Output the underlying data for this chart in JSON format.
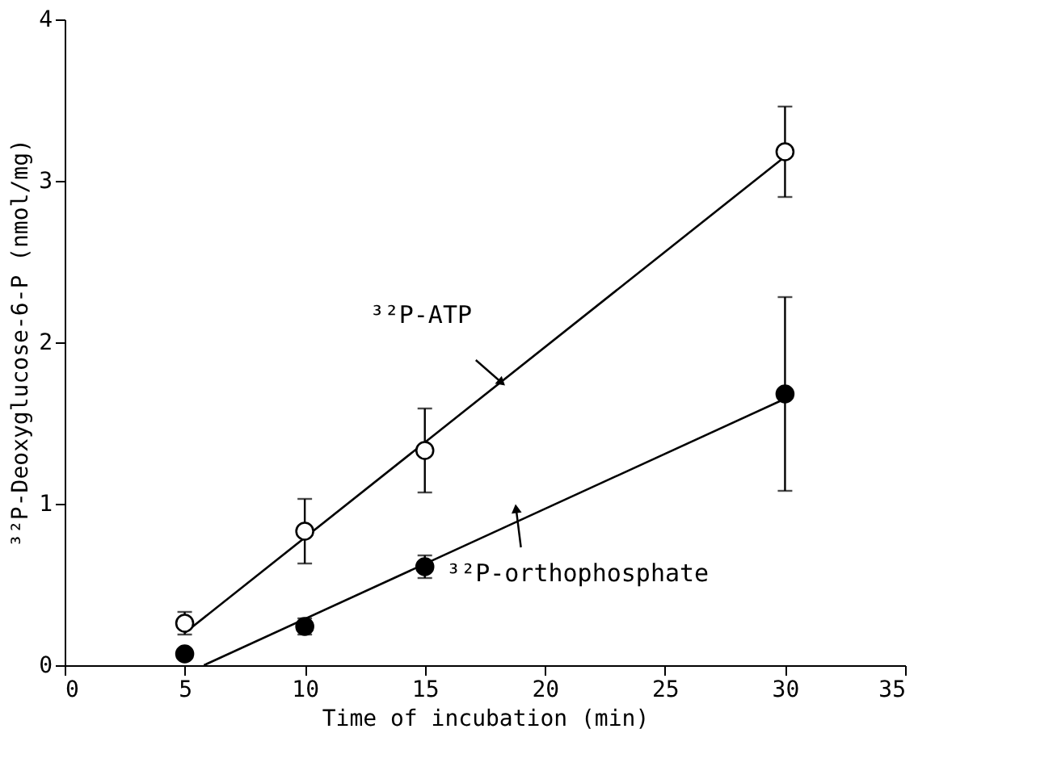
{
  "chart_data": {
    "type": "scatter",
    "xlabel": "Time of incubation (min)",
    "ylabel": "³²P-Deoxyglucose-6-P (nmol/mg)",
    "xlim": [
      0,
      35
    ],
    "xticks": [
      0,
      5,
      10,
      15,
      20,
      25,
      30,
      35
    ],
    "ylim": [
      0,
      4
    ],
    "yticks": [
      {
        "value": 0,
        "label": "0"
      },
      {
        "value": 1,
        "label": "1"
      },
      {
        "value": 2,
        "label": "2"
      },
      {
        "value": 3,
        "label": "3"
      },
      {
        "value": 4,
        "label": "4"
      }
    ],
    "grid": false,
    "marker": "circle",
    "series": [
      {
        "color": "#ffffff",
        "x": [
          5,
          10,
          15,
          30
        ],
        "values": [
          0.26,
          0.83,
          1.33,
          3.18
        ],
        "errors": [
          0.07,
          0.2,
          0.26,
          0.28
        ]
      },
      {
        "color": "#000000",
        "x": [
          5,
          10,
          15,
          30
        ],
        "values": [
          0.07,
          0.24,
          0.61,
          1.68
        ],
        "errors": [
          null,
          0.05,
          0.07,
          0.6
        ]
      },
      {
        "type": "line",
        "marker": "none",
        "color": "#000000",
        "x": [
          5,
          30
        ],
        "values": [
          0.2,
          3.15
        ]
      },
      {
        "type": "line",
        "marker": "none",
        "color": "#000000",
        "x": [
          5.8,
          30
        ],
        "values": [
          0,
          1.65
        ]
      }
    ],
    "annotations": [
      {
        "text": "³²P-ATP",
        "x": 18.2,
        "y": 1.75
      },
      {
        "text": "³²P-orthophosphate",
        "x": 18.8,
        "y": 0.97
      }
    ]
  }
}
